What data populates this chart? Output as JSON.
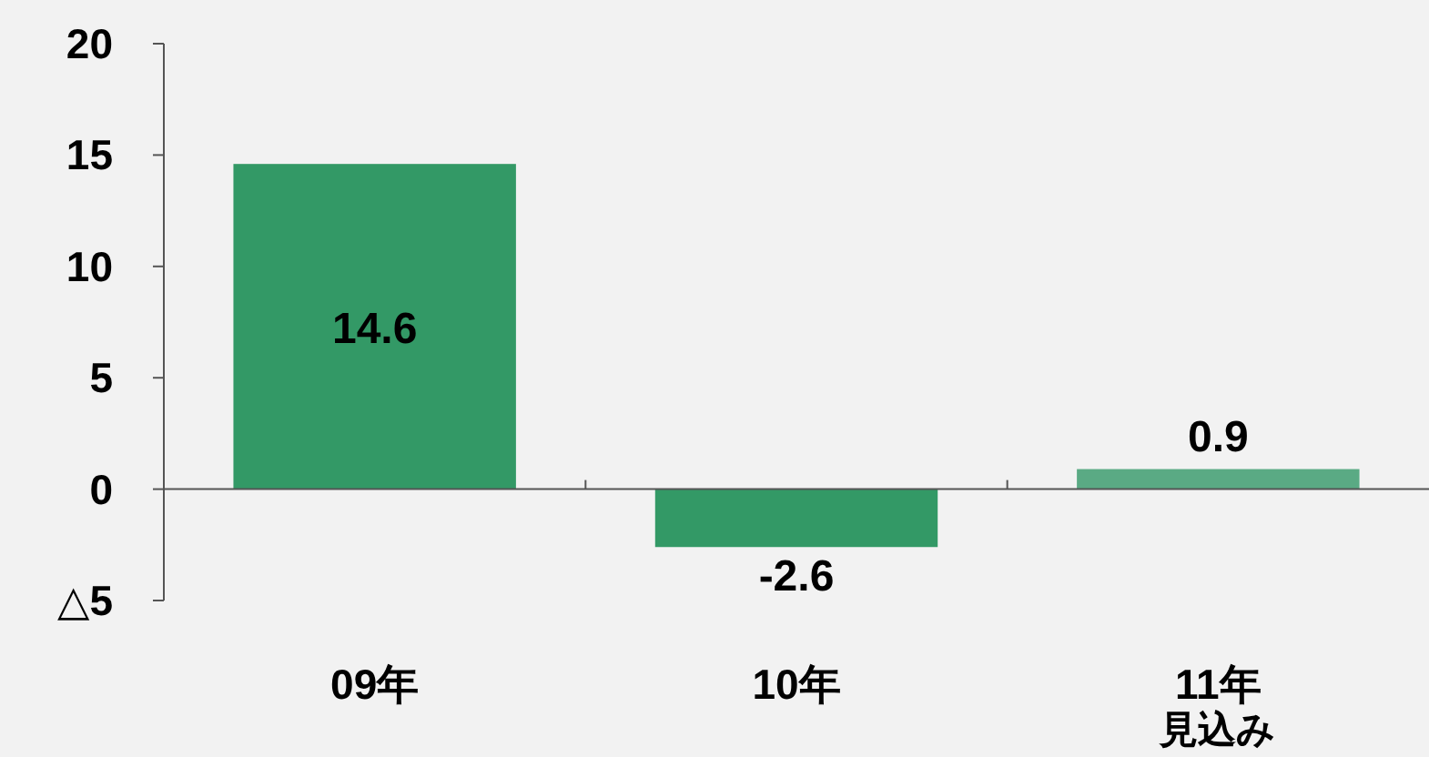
{
  "chart_data": {
    "type": "bar",
    "categories": [
      "09年",
      "10年",
      "11年見込み"
    ],
    "values": [
      14.6,
      -2.6,
      0.9
    ],
    "colors": [
      "#339966",
      "#339966",
      "#5aaa84"
    ],
    "ylim": [
      -5,
      20
    ],
    "yticks": [
      {
        "value": -5,
        "label": "△5"
      },
      0,
      5,
      10,
      15,
      20
    ],
    "data_labels": true
  }
}
